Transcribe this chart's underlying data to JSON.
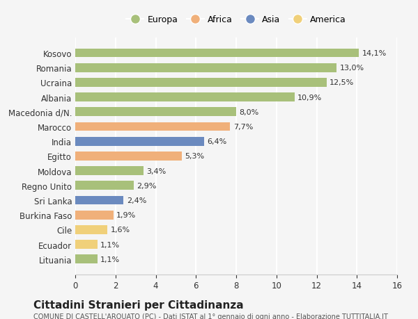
{
  "categories": [
    "Kosovo",
    "Romania",
    "Ucraina",
    "Albania",
    "Macedonia d/N.",
    "Marocco",
    "India",
    "Egitto",
    "Moldova",
    "Regno Unito",
    "Sri Lanka",
    "Burkina Faso",
    "Cile",
    "Ecuador",
    "Lituania"
  ],
  "values": [
    14.1,
    13.0,
    12.5,
    10.9,
    8.0,
    7.7,
    6.4,
    5.3,
    3.4,
    2.9,
    2.4,
    1.9,
    1.6,
    1.1,
    1.1
  ],
  "labels": [
    "14,1%",
    "13,0%",
    "12,5%",
    "10,9%",
    "8,0%",
    "7,7%",
    "6,4%",
    "5,3%",
    "3,4%",
    "2,9%",
    "2,4%",
    "1,9%",
    "1,6%",
    "1,1%",
    "1,1%"
  ],
  "continents": [
    "Europa",
    "Europa",
    "Europa",
    "Europa",
    "Europa",
    "Africa",
    "Asia",
    "Africa",
    "Europa",
    "Europa",
    "Asia",
    "Africa",
    "America",
    "America",
    "Europa"
  ],
  "continent_colors": {
    "Europa": "#a8c07a",
    "Africa": "#f0b07a",
    "Asia": "#6b8abf",
    "America": "#f0d07a"
  },
  "legend_order": [
    "Europa",
    "Africa",
    "Asia",
    "America"
  ],
  "xlim": [
    0,
    16
  ],
  "xticks": [
    0,
    2,
    4,
    6,
    8,
    10,
    12,
    14,
    16
  ],
  "title": "Cittadini Stranieri per Cittadinanza",
  "subtitle": "COMUNE DI CASTELL'ARQUATO (PC) - Dati ISTAT al 1° gennaio di ogni anno - Elaborazione TUTTITALIA.IT",
  "background_color": "#f5f5f5",
  "grid_color": "#ffffff",
  "bar_height": 0.6
}
